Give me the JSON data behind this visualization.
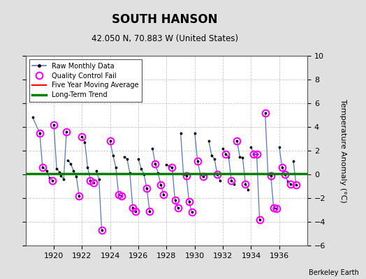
{
  "title": "SOUTH HANSON",
  "subtitle": "42.050 N, 70.883 W (United States)",
  "ylabel": "Temperature Anomaly (°C)",
  "credit": "Berkeley Earth",
  "ylim": [
    -6,
    10
  ],
  "xlim": [
    1918.0,
    1938.0
  ],
  "yticks": [
    -6,
    -4,
    -2,
    0,
    2,
    4,
    6,
    8,
    10
  ],
  "xticks": [
    1920,
    1922,
    1924,
    1926,
    1928,
    1930,
    1932,
    1934,
    1936
  ],
  "long_term_trend": 0.08,
  "five_year_avg": 0.08,
  "background_color": "#e0e0e0",
  "plot_bg_color": "#ffffff",
  "raw_data": [
    [
      1918.5,
      4.8
    ],
    [
      1919.0,
      3.5
    ],
    [
      1919.2,
      0.6
    ],
    [
      1919.5,
      0.3
    ],
    [
      1919.7,
      -0.3
    ],
    [
      1919.9,
      -0.5
    ],
    [
      1920.0,
      4.2
    ],
    [
      1920.2,
      0.5
    ],
    [
      1920.4,
      0.2
    ],
    [
      1920.5,
      -0.1
    ],
    [
      1920.7,
      -0.4
    ],
    [
      1920.9,
      3.6
    ],
    [
      1921.0,
      1.2
    ],
    [
      1921.2,
      0.9
    ],
    [
      1921.4,
      0.3
    ],
    [
      1921.6,
      -0.2
    ],
    [
      1921.8,
      -1.8
    ],
    [
      1922.0,
      3.2
    ],
    [
      1922.2,
      2.7
    ],
    [
      1922.4,
      0.6
    ],
    [
      1922.6,
      -0.5
    ],
    [
      1922.8,
      -0.7
    ],
    [
      1923.0,
      0.3
    ],
    [
      1923.2,
      -0.4
    ],
    [
      1923.4,
      -4.7
    ],
    [
      1924.0,
      2.8
    ],
    [
      1924.2,
      1.6
    ],
    [
      1924.4,
      0.6
    ],
    [
      1924.6,
      -1.7
    ],
    [
      1924.8,
      -1.8
    ],
    [
      1925.0,
      1.5
    ],
    [
      1925.2,
      1.3
    ],
    [
      1925.4,
      0.1
    ],
    [
      1925.6,
      -2.8
    ],
    [
      1925.8,
      -3.1
    ],
    [
      1926.0,
      1.3
    ],
    [
      1926.2,
      0.5
    ],
    [
      1926.4,
      0.0
    ],
    [
      1926.6,
      -1.2
    ],
    [
      1926.8,
      -3.1
    ],
    [
      1927.0,
      2.2
    ],
    [
      1927.2,
      0.9
    ],
    [
      1927.4,
      0.1
    ],
    [
      1927.6,
      -0.9
    ],
    [
      1927.8,
      -1.7
    ],
    [
      1928.0,
      0.8
    ],
    [
      1928.2,
      0.7
    ],
    [
      1928.4,
      0.6
    ],
    [
      1928.6,
      -2.2
    ],
    [
      1928.8,
      -2.8
    ],
    [
      1929.0,
      3.5
    ],
    [
      1929.2,
      0.0
    ],
    [
      1929.4,
      -0.1
    ],
    [
      1929.6,
      -2.3
    ],
    [
      1929.8,
      -3.2
    ],
    [
      1930.0,
      3.5
    ],
    [
      1930.2,
      1.1
    ],
    [
      1930.4,
      0.0
    ],
    [
      1930.6,
      -0.2
    ],
    [
      1930.8,
      0.0
    ],
    [
      1931.0,
      2.8
    ],
    [
      1931.2,
      1.6
    ],
    [
      1931.4,
      1.3
    ],
    [
      1931.6,
      0.0
    ],
    [
      1931.8,
      -0.5
    ],
    [
      1932.0,
      2.2
    ],
    [
      1932.2,
      1.7
    ],
    [
      1932.4,
      1.5
    ],
    [
      1932.6,
      -0.5
    ],
    [
      1932.8,
      -0.8
    ],
    [
      1933.0,
      2.8
    ],
    [
      1933.2,
      1.5
    ],
    [
      1933.4,
      1.4
    ],
    [
      1933.6,
      -0.8
    ],
    [
      1933.8,
      -1.3
    ],
    [
      1934.0,
      2.3
    ],
    [
      1934.2,
      1.7
    ],
    [
      1934.4,
      1.7
    ],
    [
      1934.6,
      -3.8
    ],
    [
      1935.0,
      5.2
    ],
    [
      1935.2,
      0.0
    ],
    [
      1935.4,
      -0.1
    ],
    [
      1935.6,
      -2.8
    ],
    [
      1935.8,
      -2.9
    ],
    [
      1936.0,
      2.3
    ],
    [
      1936.2,
      0.6
    ],
    [
      1936.4,
      0.0
    ],
    [
      1936.6,
      -0.6
    ],
    [
      1936.8,
      -0.8
    ],
    [
      1937.0,
      1.1
    ],
    [
      1937.2,
      -0.9
    ]
  ],
  "qc_fail_points": [
    [
      1919.0,
      3.5
    ],
    [
      1919.2,
      0.6
    ],
    [
      1919.9,
      -0.5
    ],
    [
      1920.0,
      4.2
    ],
    [
      1920.9,
      3.6
    ],
    [
      1921.8,
      -1.8
    ],
    [
      1922.0,
      3.2
    ],
    [
      1922.6,
      -0.5
    ],
    [
      1922.8,
      -0.7
    ],
    [
      1923.4,
      -4.7
    ],
    [
      1924.0,
      2.8
    ],
    [
      1924.6,
      -1.7
    ],
    [
      1924.8,
      -1.8
    ],
    [
      1925.6,
      -2.8
    ],
    [
      1925.8,
      -3.1
    ],
    [
      1926.6,
      -1.2
    ],
    [
      1926.8,
      -3.1
    ],
    [
      1927.2,
      0.9
    ],
    [
      1927.6,
      -0.9
    ],
    [
      1927.8,
      -1.7
    ],
    [
      1928.4,
      0.6
    ],
    [
      1928.6,
      -2.2
    ],
    [
      1928.8,
      -2.8
    ],
    [
      1929.4,
      -0.1
    ],
    [
      1929.6,
      -2.3
    ],
    [
      1929.8,
      -3.2
    ],
    [
      1930.2,
      1.1
    ],
    [
      1930.6,
      -0.2
    ],
    [
      1931.6,
      0.0
    ],
    [
      1932.2,
      1.7
    ],
    [
      1932.6,
      -0.5
    ],
    [
      1933.0,
      2.8
    ],
    [
      1933.6,
      -0.8
    ],
    [
      1934.2,
      1.7
    ],
    [
      1934.4,
      1.7
    ],
    [
      1934.6,
      -3.8
    ],
    [
      1935.0,
      5.2
    ],
    [
      1935.4,
      -0.1
    ],
    [
      1935.6,
      -2.8
    ],
    [
      1935.8,
      -2.9
    ],
    [
      1936.2,
      0.6
    ],
    [
      1936.4,
      0.0
    ],
    [
      1936.8,
      -0.8
    ],
    [
      1937.2,
      -0.9
    ]
  ],
  "segments": [
    [
      [
        1918.5,
        4.8
      ],
      [
        1919.0,
        3.5
      ]
    ],
    [
      [
        1919.0,
        3.5
      ],
      [
        1919.2,
        0.6
      ]
    ],
    [
      [
        1919.2,
        0.6
      ],
      [
        1919.5,
        0.3
      ]
    ],
    [
      [
        1919.5,
        0.3
      ],
      [
        1919.7,
        -0.3
      ]
    ],
    [
      [
        1919.7,
        -0.3
      ],
      [
        1919.9,
        -0.5
      ]
    ],
    [
      [
        1920.0,
        4.2
      ],
      [
        1920.2,
        0.5
      ]
    ],
    [
      [
        1920.2,
        0.5
      ],
      [
        1920.4,
        0.2
      ]
    ],
    [
      [
        1920.4,
        0.2
      ],
      [
        1920.5,
        -0.1
      ]
    ],
    [
      [
        1920.5,
        -0.1
      ],
      [
        1920.7,
        -0.4
      ]
    ],
    [
      [
        1920.7,
        -0.4
      ],
      [
        1920.9,
        3.6
      ]
    ],
    [
      [
        1921.0,
        1.2
      ],
      [
        1921.2,
        0.9
      ]
    ],
    [
      [
        1921.2,
        0.9
      ],
      [
        1921.4,
        0.3
      ]
    ],
    [
      [
        1921.4,
        0.3
      ],
      [
        1921.6,
        -0.2
      ]
    ],
    [
      [
        1921.6,
        -0.2
      ],
      [
        1921.8,
        -1.8
      ]
    ],
    [
      [
        1922.0,
        3.2
      ],
      [
        1922.2,
        2.7
      ]
    ],
    [
      [
        1922.2,
        2.7
      ],
      [
        1922.4,
        0.6
      ]
    ],
    [
      [
        1922.4,
        0.6
      ],
      [
        1922.6,
        -0.5
      ]
    ],
    [
      [
        1922.6,
        -0.5
      ],
      [
        1922.8,
        -0.7
      ]
    ],
    [
      [
        1923.0,
        0.3
      ],
      [
        1923.2,
        -0.4
      ]
    ],
    [
      [
        1923.2,
        -0.4
      ],
      [
        1923.4,
        -4.7
      ]
    ],
    [
      [
        1924.0,
        2.8
      ],
      [
        1924.2,
        1.6
      ]
    ],
    [
      [
        1924.2,
        1.6
      ],
      [
        1924.4,
        0.6
      ]
    ],
    [
      [
        1924.4,
        0.6
      ],
      [
        1924.6,
        -1.7
      ]
    ],
    [
      [
        1924.6,
        -1.7
      ],
      [
        1924.8,
        -1.8
      ]
    ],
    [
      [
        1925.0,
        1.5
      ],
      [
        1925.2,
        1.3
      ]
    ],
    [
      [
        1925.2,
        1.3
      ],
      [
        1925.4,
        0.1
      ]
    ],
    [
      [
        1925.4,
        0.1
      ],
      [
        1925.6,
        -2.8
      ]
    ],
    [
      [
        1925.6,
        -2.8
      ],
      [
        1925.8,
        -3.1
      ]
    ],
    [
      [
        1926.0,
        1.3
      ],
      [
        1926.2,
        0.5
      ]
    ],
    [
      [
        1926.2,
        0.5
      ],
      [
        1926.4,
        0.0
      ]
    ],
    [
      [
        1926.4,
        0.0
      ],
      [
        1926.6,
        -1.2
      ]
    ],
    [
      [
        1926.6,
        -1.2
      ],
      [
        1926.8,
        -3.1
      ]
    ],
    [
      [
        1927.0,
        2.2
      ],
      [
        1927.2,
        0.9
      ]
    ],
    [
      [
        1927.2,
        0.9
      ],
      [
        1927.4,
        0.1
      ]
    ],
    [
      [
        1927.4,
        0.1
      ],
      [
        1927.6,
        -0.9
      ]
    ],
    [
      [
        1927.6,
        -0.9
      ],
      [
        1927.8,
        -1.7
      ]
    ],
    [
      [
        1928.0,
        0.8
      ],
      [
        1928.2,
        0.7
      ]
    ],
    [
      [
        1928.2,
        0.7
      ],
      [
        1928.4,
        0.6
      ]
    ],
    [
      [
        1928.4,
        0.6
      ],
      [
        1928.6,
        -2.2
      ]
    ],
    [
      [
        1928.6,
        -2.2
      ],
      [
        1928.8,
        -2.8
      ]
    ],
    [
      [
        1929.0,
        3.5
      ],
      [
        1929.2,
        0.0
      ]
    ],
    [
      [
        1929.2,
        0.0
      ],
      [
        1929.4,
        -0.1
      ]
    ],
    [
      [
        1929.4,
        -0.1
      ],
      [
        1929.6,
        -2.3
      ]
    ],
    [
      [
        1929.6,
        -2.3
      ],
      [
        1929.8,
        -3.2
      ]
    ],
    [
      [
        1930.0,
        3.5
      ],
      [
        1930.2,
        1.1
      ]
    ],
    [
      [
        1930.2,
        1.1
      ],
      [
        1930.4,
        0.0
      ]
    ],
    [
      [
        1930.4,
        0.0
      ],
      [
        1930.6,
        -0.2
      ]
    ],
    [
      [
        1930.6,
        -0.2
      ],
      [
        1930.8,
        0.0
      ]
    ],
    [
      [
        1931.0,
        2.8
      ],
      [
        1931.2,
        1.6
      ]
    ],
    [
      [
        1931.2,
        1.6
      ],
      [
        1931.4,
        1.3
      ]
    ],
    [
      [
        1931.4,
        1.3
      ],
      [
        1931.6,
        0.0
      ]
    ],
    [
      [
        1931.6,
        0.0
      ],
      [
        1931.8,
        -0.5
      ]
    ],
    [
      [
        1932.0,
        2.2
      ],
      [
        1932.2,
        1.7
      ]
    ],
    [
      [
        1932.2,
        1.7
      ],
      [
        1932.4,
        1.5
      ]
    ],
    [
      [
        1932.4,
        1.5
      ],
      [
        1932.6,
        -0.5
      ]
    ],
    [
      [
        1932.6,
        -0.5
      ],
      [
        1932.8,
        -0.8
      ]
    ],
    [
      [
        1933.0,
        2.8
      ],
      [
        1933.2,
        1.5
      ]
    ],
    [
      [
        1933.2,
        1.5
      ],
      [
        1933.4,
        1.4
      ]
    ],
    [
      [
        1933.4,
        1.4
      ],
      [
        1933.6,
        -0.8
      ]
    ],
    [
      [
        1933.6,
        -0.8
      ],
      [
        1933.8,
        -1.3
      ]
    ],
    [
      [
        1934.0,
        2.3
      ],
      [
        1934.2,
        1.7
      ]
    ],
    [
      [
        1934.2,
        1.7
      ],
      [
        1934.4,
        1.7
      ]
    ],
    [
      [
        1934.4,
        1.7
      ],
      [
        1934.6,
        -3.8
      ]
    ],
    [
      [
        1935.0,
        5.2
      ],
      [
        1935.2,
        0.0
      ]
    ],
    [
      [
        1935.2,
        0.0
      ],
      [
        1935.4,
        -0.1
      ]
    ],
    [
      [
        1935.4,
        -0.1
      ],
      [
        1935.6,
        -2.8
      ]
    ],
    [
      [
        1935.6,
        -2.8
      ],
      [
        1935.8,
        -2.9
      ]
    ],
    [
      [
        1936.0,
        2.3
      ],
      [
        1936.2,
        0.6
      ]
    ],
    [
      [
        1936.2,
        0.6
      ],
      [
        1936.4,
        0.0
      ]
    ],
    [
      [
        1936.4,
        0.0
      ],
      [
        1936.6,
        -0.6
      ]
    ],
    [
      [
        1936.6,
        -0.6
      ],
      [
        1936.8,
        -0.8
      ]
    ],
    [
      [
        1937.0,
        1.1
      ],
      [
        1937.2,
        -0.9
      ]
    ]
  ]
}
